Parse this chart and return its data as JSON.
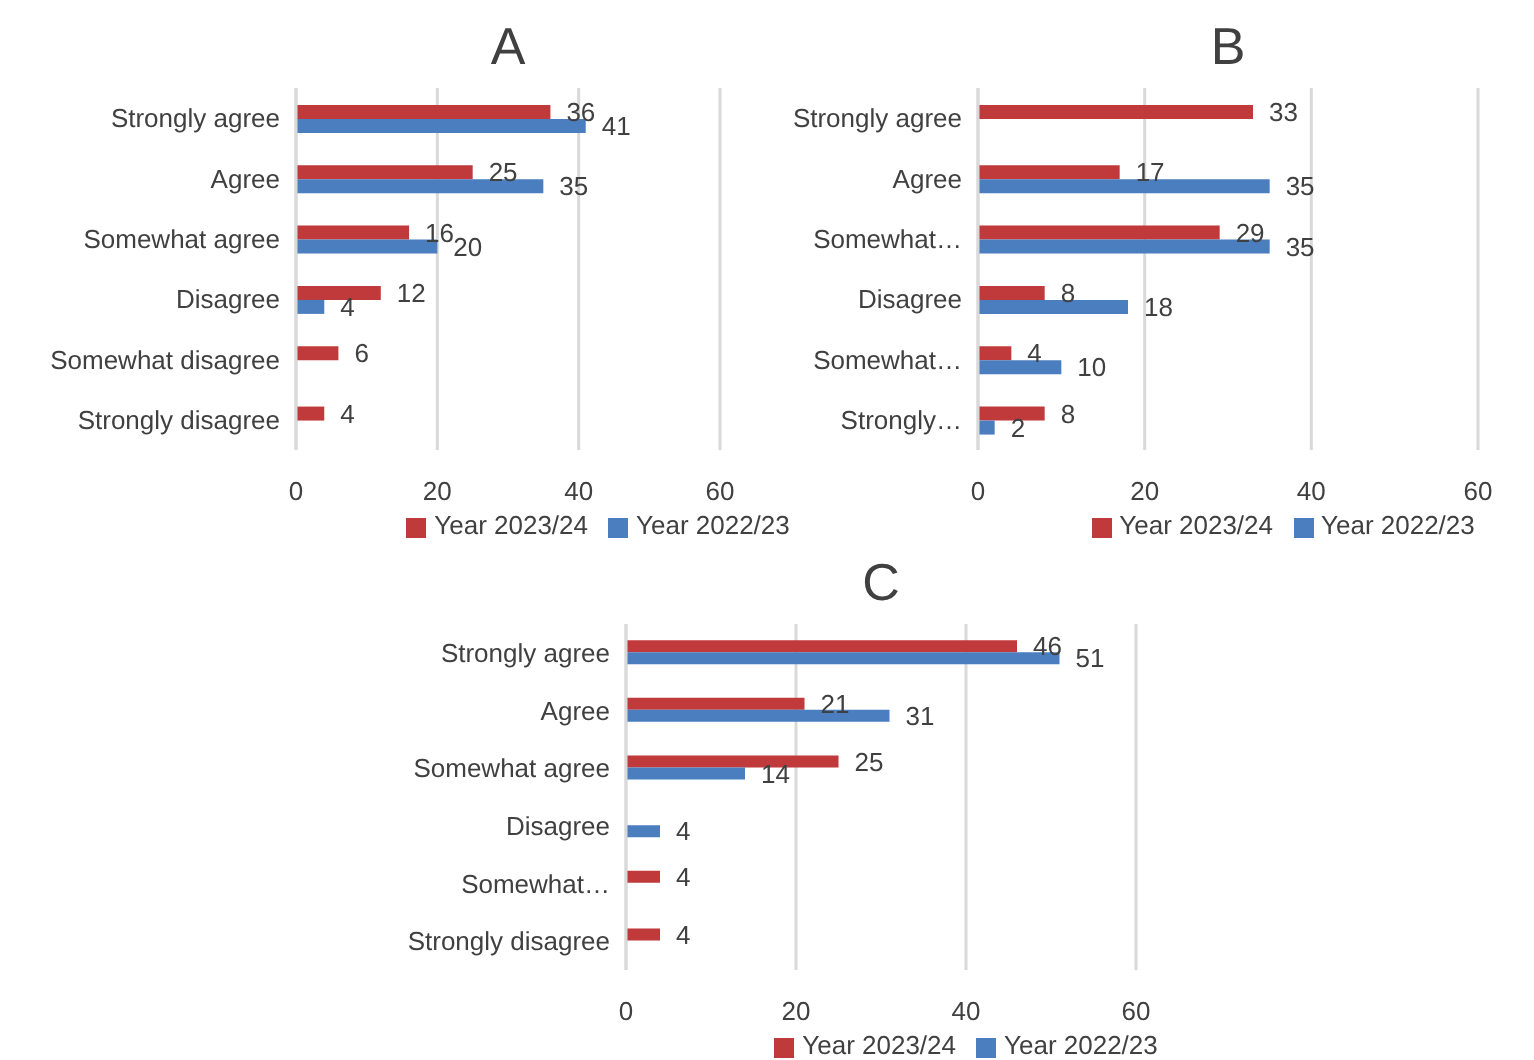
{
  "chart_data": [
    {
      "type": "bar",
      "title": "A",
      "orientation": "horizontal",
      "categories": [
        "Strongly agree",
        "Agree",
        "Somewhat agree",
        "Disagree",
        "Somewhat disagree",
        "Strongly disagree"
      ],
      "series": [
        {
          "name": "Year 2023/24",
          "color": "#c0393b",
          "values": [
            36,
            25,
            16,
            12,
            6,
            4
          ]
        },
        {
          "name": "Year 2022/23",
          "color": "#4a7ebf",
          "values": [
            41,
            35,
            20,
            4,
            null,
            null
          ]
        }
      ],
      "xlim": [
        0,
        60
      ],
      "xticks": [
        0,
        20,
        40,
        60
      ],
      "grid": "x",
      "legend": "bottom",
      "data_labels": true
    },
    {
      "type": "bar",
      "title": "B",
      "orientation": "horizontal",
      "categories": [
        "Strongly agree",
        "Agree",
        "Somewhat…",
        "Disagree",
        "Somewhat…",
        "Strongly…"
      ],
      "series": [
        {
          "name": "Year 2023/24",
          "color": "#c0393b",
          "values": [
            33,
            17,
            29,
            8,
            4,
            8
          ]
        },
        {
          "name": "Year 2022/23",
          "color": "#4a7ebf",
          "values": [
            null,
            35,
            35,
            18,
            10,
            2
          ]
        }
      ],
      "xlim": [
        0,
        60
      ],
      "xticks": [
        0,
        20,
        40,
        60
      ],
      "grid": "x",
      "legend": "bottom",
      "data_labels": true
    },
    {
      "type": "bar",
      "title": "C",
      "orientation": "horizontal",
      "categories": [
        "Strongly agree",
        "Agree",
        "Somewhat agree",
        "Disagree",
        "Somewhat…",
        "Strongly disagree"
      ],
      "series": [
        {
          "name": "Year 2023/24",
          "color": "#c0393b",
          "values": [
            46,
            21,
            25,
            null,
            4,
            4
          ]
        },
        {
          "name": "Year 2022/23",
          "color": "#4a7ebf",
          "values": [
            51,
            31,
            14,
            4,
            null,
            null
          ]
        }
      ],
      "xlim": [
        0,
        60
      ],
      "xticks": [
        0,
        20,
        40,
        60
      ],
      "grid": "x",
      "legend": "bottom",
      "data_labels": true
    }
  ]
}
